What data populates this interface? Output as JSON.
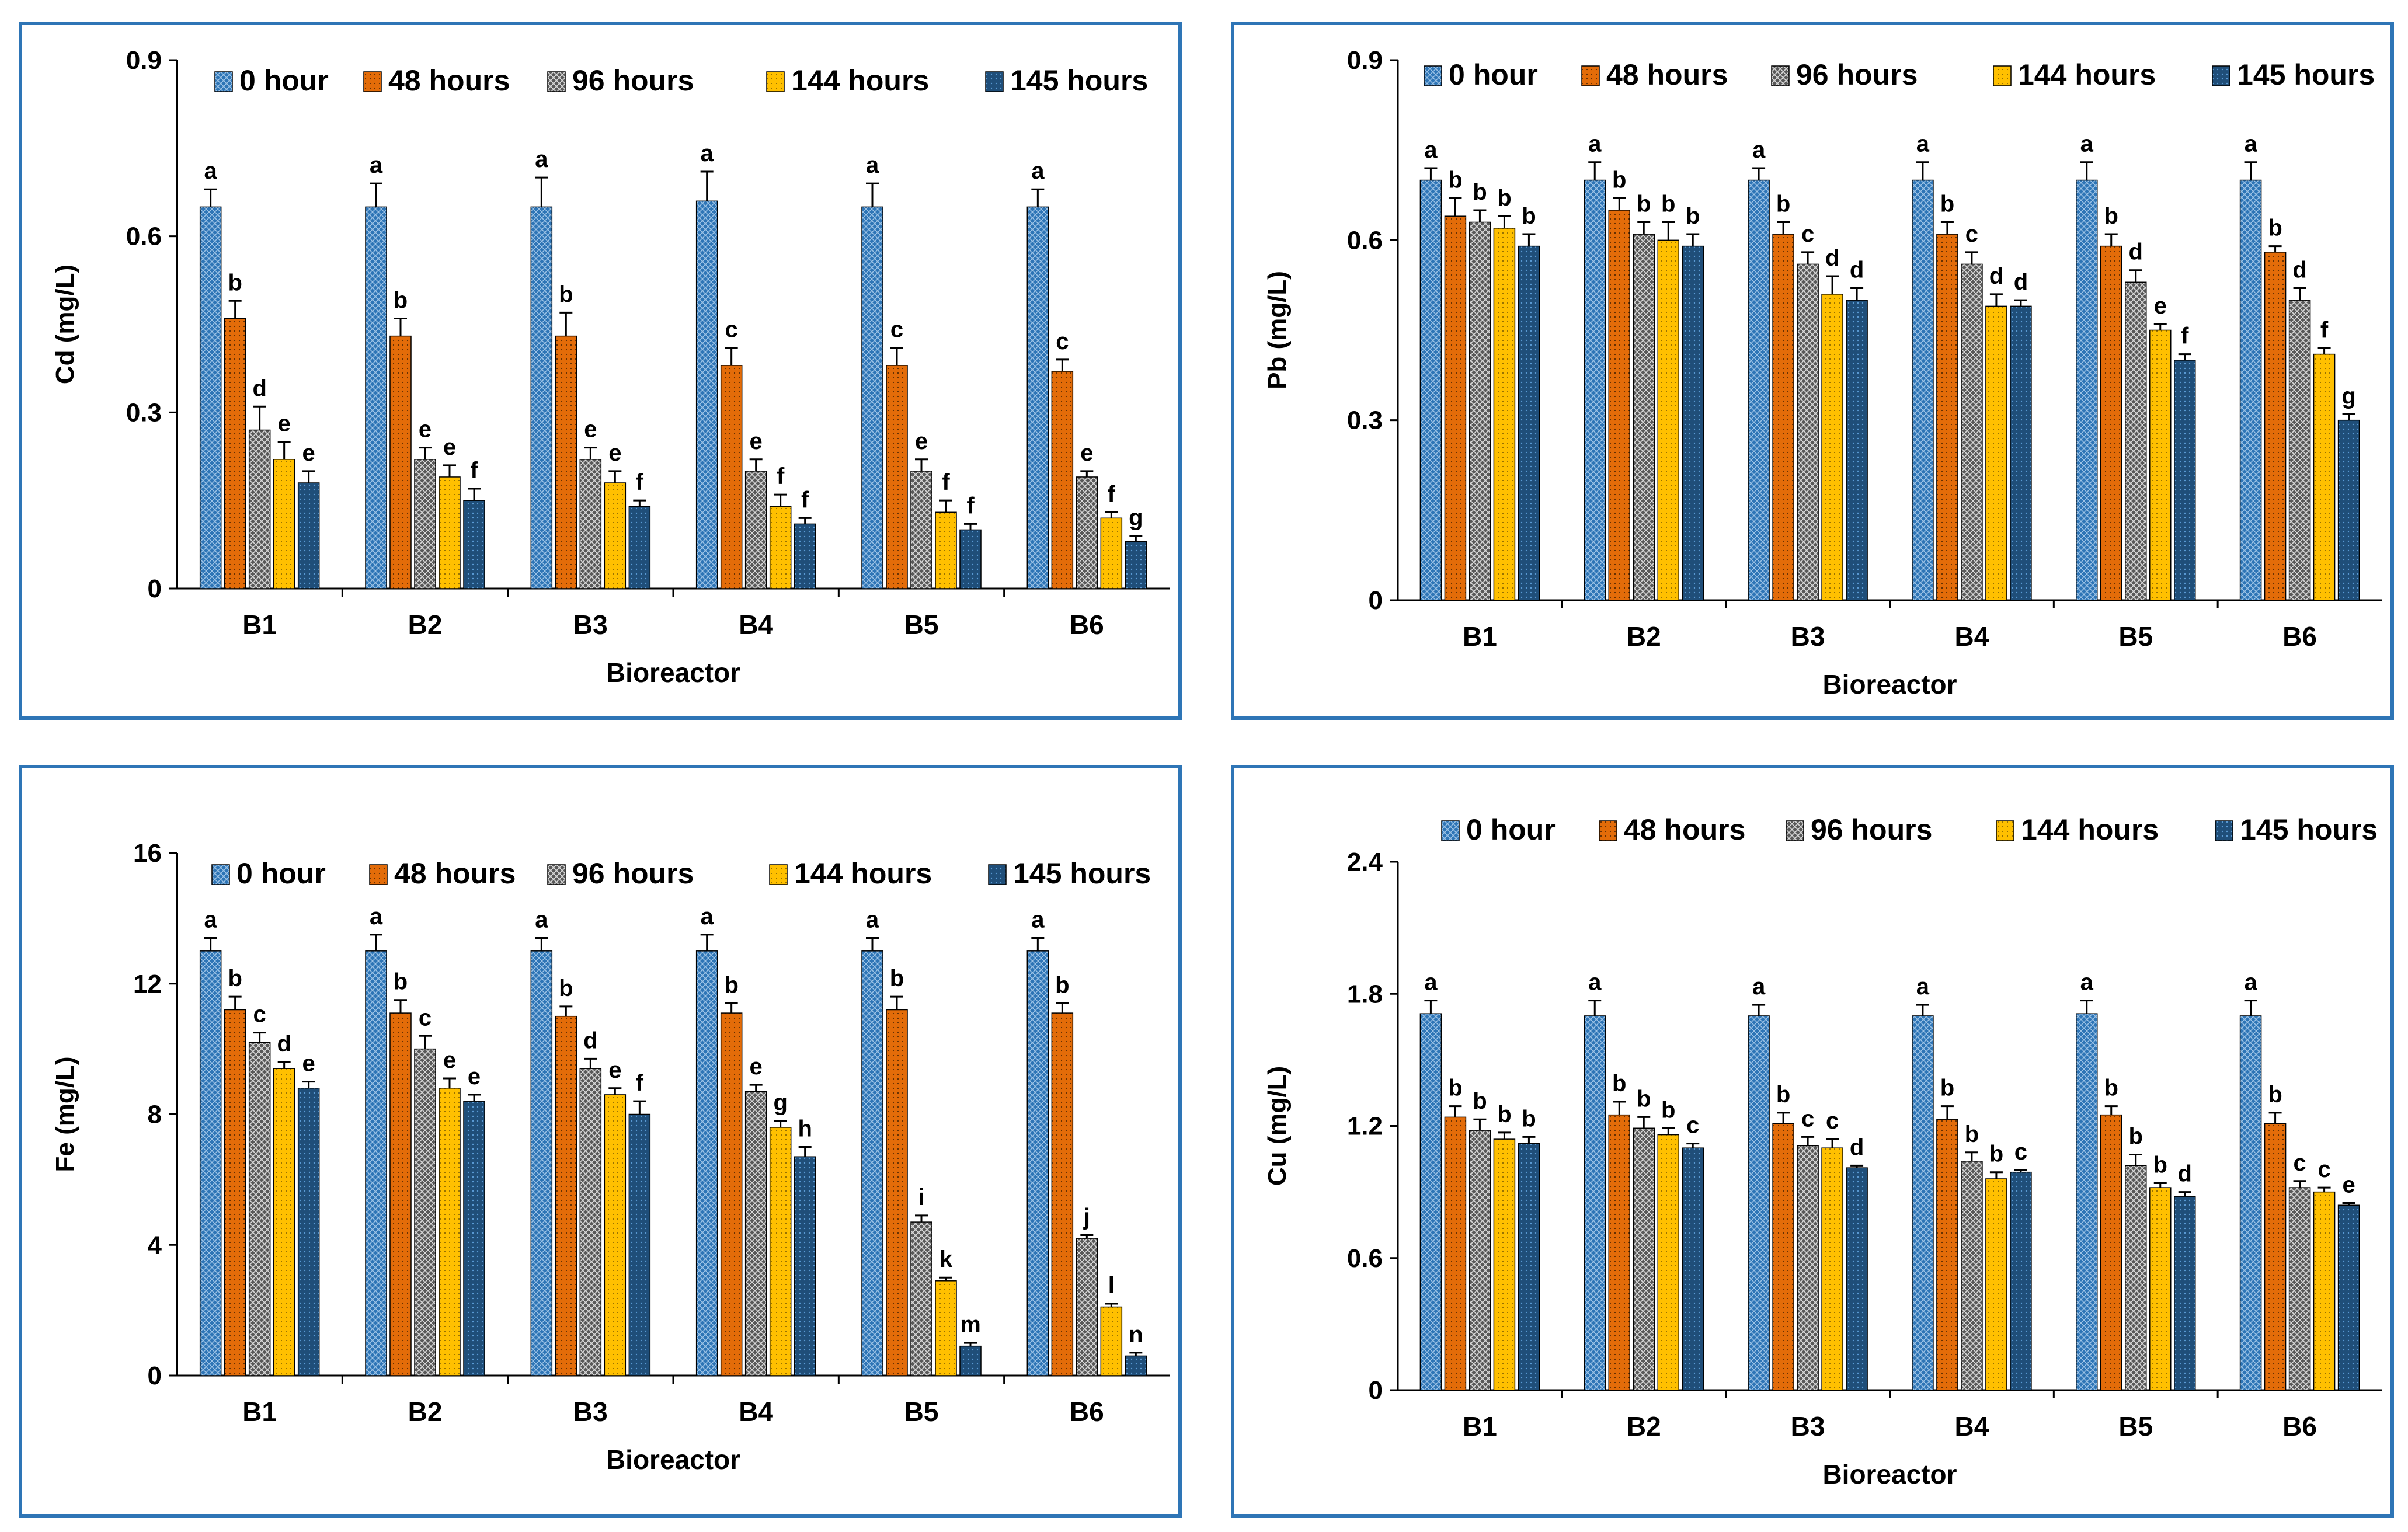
{
  "chart_data": [
    {
      "type": "bar",
      "ylabel": "Cd (mg/L)",
      "xlabel": "Bioreactor",
      "categories": [
        "B1",
        "B2",
        "B3",
        "B4",
        "B5",
        "B6"
      ],
      "ylim": [
        0,
        0.9
      ],
      "yticks": [
        "0",
        "0.3",
        "0.6",
        "0.9"
      ],
      "legend_position": "top",
      "series": [
        {
          "name": "0 hour",
          "values": [
            0.65,
            0.65,
            0.65,
            0.66,
            0.65,
            0.65
          ],
          "errors": [
            0.03,
            0.04,
            0.05,
            0.05,
            0.04,
            0.03
          ],
          "letters": [
            "a",
            "a",
            "a",
            "a",
            "a",
            "a"
          ]
        },
        {
          "name": "48 hours",
          "values": [
            0.46,
            0.43,
            0.43,
            0.38,
            0.38,
            0.37
          ],
          "errors": [
            0.03,
            0.03,
            0.04,
            0.03,
            0.03,
            0.02
          ],
          "letters": [
            "b",
            "b",
            "b",
            "c",
            "c",
            "c"
          ]
        },
        {
          "name": "96 hours",
          "values": [
            0.27,
            0.22,
            0.22,
            0.2,
            0.2,
            0.19
          ],
          "errors": [
            0.04,
            0.02,
            0.02,
            0.02,
            0.02,
            0.01
          ],
          "letters": [
            "d",
            "e",
            "e",
            "e",
            "e",
            "e"
          ]
        },
        {
          "name": "144 hours",
          "values": [
            0.22,
            0.19,
            0.18,
            0.14,
            0.13,
            0.12
          ],
          "errors": [
            0.03,
            0.02,
            0.02,
            0.02,
            0.02,
            0.01
          ],
          "letters": [
            "e",
            "e",
            "e",
            "f",
            "f",
            "f"
          ]
        },
        {
          "name": "145 hours",
          "values": [
            0.18,
            0.15,
            0.14,
            0.11,
            0.1,
            0.08
          ],
          "errors": [
            0.02,
            0.02,
            0.01,
            0.01,
            0.01,
            0.01
          ],
          "letters": [
            "e",
            "f",
            "f",
            "f",
            "f",
            "g"
          ]
        }
      ]
    },
    {
      "type": "bar",
      "ylabel": "Pb (mg/L)",
      "xlabel": "Bioreactor",
      "categories": [
        "B1",
        "B2",
        "B3",
        "B4",
        "B5",
        "B6"
      ],
      "ylim": [
        0,
        0.9
      ],
      "yticks": [
        "0",
        "0.3",
        "0.6",
        "0.9"
      ],
      "legend_position": "top",
      "series": [
        {
          "name": "0 hour",
          "values": [
            0.7,
            0.7,
            0.7,
            0.7,
            0.7,
            0.7
          ],
          "errors": [
            0.02,
            0.03,
            0.02,
            0.03,
            0.03,
            0.03
          ],
          "letters": [
            "a",
            "a",
            "a",
            "a",
            "a",
            "a"
          ]
        },
        {
          "name": "48 hours",
          "values": [
            0.64,
            0.65,
            0.61,
            0.61,
            0.59,
            0.58
          ],
          "errors": [
            0.03,
            0.02,
            0.02,
            0.02,
            0.02,
            0.01
          ],
          "letters": [
            "b",
            "b",
            "b",
            "b",
            "b",
            "b"
          ]
        },
        {
          "name": "96 hours",
          "values": [
            0.63,
            0.61,
            0.56,
            0.56,
            0.53,
            0.5
          ],
          "errors": [
            0.02,
            0.02,
            0.02,
            0.02,
            0.02,
            0.02
          ],
          "letters": [
            "b",
            "b",
            "c",
            "c",
            "d",
            "d"
          ]
        },
        {
          "name": "144 hours",
          "values": [
            0.62,
            0.6,
            0.51,
            0.49,
            0.45,
            0.41
          ],
          "errors": [
            0.02,
            0.03,
            0.03,
            0.02,
            0.01,
            0.01
          ],
          "letters": [
            "b",
            "b",
            "d",
            "d",
            "e",
            "f"
          ]
        },
        {
          "name": "145 hours",
          "values": [
            0.59,
            0.59,
            0.5,
            0.49,
            0.4,
            0.3
          ],
          "errors": [
            0.02,
            0.02,
            0.02,
            0.01,
            0.01,
            0.01
          ],
          "letters": [
            "b",
            "b",
            "d",
            "d",
            "f",
            "g"
          ]
        }
      ]
    },
    {
      "type": "bar",
      "ylabel": "Fe (mg/L)",
      "xlabel": "Bioreactor",
      "categories": [
        "B1",
        "B2",
        "B3",
        "B4",
        "B5",
        "B6"
      ],
      "ylim": [
        0,
        16
      ],
      "yticks": [
        "0",
        "4",
        "8",
        "12",
        "16"
      ],
      "legend_position": "top",
      "series": [
        {
          "name": "0 hour",
          "values": [
            13.0,
            13.0,
            13.0,
            13.0,
            13.0,
            13.0
          ],
          "errors": [
            0.4,
            0.5,
            0.4,
            0.5,
            0.4,
            0.4
          ],
          "letters": [
            "a",
            "a",
            "a",
            "a",
            "a",
            "a"
          ]
        },
        {
          "name": "48 hours",
          "values": [
            11.2,
            11.1,
            11.0,
            11.1,
            11.2,
            11.1
          ],
          "errors": [
            0.4,
            0.4,
            0.3,
            0.3,
            0.4,
            0.3
          ],
          "letters": [
            "b",
            "b",
            "b",
            "b",
            "b",
            "b"
          ]
        },
        {
          "name": "96 hours",
          "values": [
            10.2,
            10.0,
            9.4,
            8.7,
            4.7,
            4.2
          ],
          "errors": [
            0.3,
            0.4,
            0.3,
            0.2,
            0.2,
            0.1
          ],
          "letters": [
            "c",
            "c",
            "d",
            "e",
            "i",
            "j"
          ]
        },
        {
          "name": "144 hours",
          "values": [
            9.4,
            8.8,
            8.6,
            7.6,
            2.9,
            2.1
          ],
          "errors": [
            0.2,
            0.3,
            0.2,
            0.2,
            0.1,
            0.1
          ],
          "letters": [
            "d",
            "e",
            "e",
            "g",
            "k",
            "l"
          ]
        },
        {
          "name": "145 hours",
          "values": [
            8.8,
            8.4,
            8.0,
            6.7,
            0.9,
            0.6
          ],
          "errors": [
            0.2,
            0.2,
            0.4,
            0.3,
            0.1,
            0.1
          ],
          "letters": [
            "e",
            "e",
            "f",
            "h",
            "m",
            "n"
          ]
        }
      ]
    },
    {
      "type": "bar",
      "ylabel": "Cu (mg/L)",
      "xlabel": "Bioreactor",
      "categories": [
        "B1",
        "B2",
        "B3",
        "B4",
        "B5",
        "B6"
      ],
      "ylim": [
        0,
        2.4
      ],
      "yticks": [
        "0",
        "0.6",
        "1.2",
        "1.8",
        "2.4"
      ],
      "legend_position": "top",
      "series": [
        {
          "name": "0 hour",
          "values": [
            1.71,
            1.7,
            1.7,
            1.7,
            1.71,
            1.7
          ],
          "errors": [
            0.06,
            0.07,
            0.05,
            0.05,
            0.06,
            0.07
          ],
          "letters": [
            "a",
            "a",
            "a",
            "a",
            "a",
            "a"
          ]
        },
        {
          "name": "48 hours",
          "values": [
            1.24,
            1.25,
            1.21,
            1.23,
            1.25,
            1.21
          ],
          "errors": [
            0.05,
            0.06,
            0.05,
            0.06,
            0.04,
            0.05
          ],
          "letters": [
            "b",
            "b",
            "b",
            "b",
            "b",
            "b"
          ]
        },
        {
          "name": "96 hours",
          "values": [
            1.18,
            1.19,
            1.11,
            1.04,
            1.02,
            0.92
          ],
          "errors": [
            0.05,
            0.05,
            0.04,
            0.04,
            0.05,
            0.03
          ],
          "letters": [
            "b",
            "b",
            "c",
            "b",
            "b",
            "c"
          ]
        },
        {
          "name": "144 hours",
          "values": [
            1.14,
            1.16,
            1.1,
            0.96,
            0.92,
            0.9
          ],
          "errors": [
            0.03,
            0.03,
            0.04,
            0.03,
            0.02,
            0.02
          ],
          "letters": [
            "b",
            "b",
            "c",
            "b",
            "b",
            "c"
          ]
        },
        {
          "name": "145 hours",
          "values": [
            1.12,
            1.1,
            1.01,
            0.99,
            0.88,
            0.84
          ],
          "errors": [
            0.03,
            0.02,
            0.01,
            0.01,
            0.02,
            0.01
          ],
          "letters": [
            "b",
            "c",
            "d",
            "c",
            "d",
            "e"
          ]
        }
      ]
    }
  ],
  "colors": {
    "frame": "#2E75B6",
    "series": [
      "#2E75B6",
      "#E36C09",
      "#7F7F7F",
      "#FFC000",
      "#1F4E79"
    ]
  }
}
